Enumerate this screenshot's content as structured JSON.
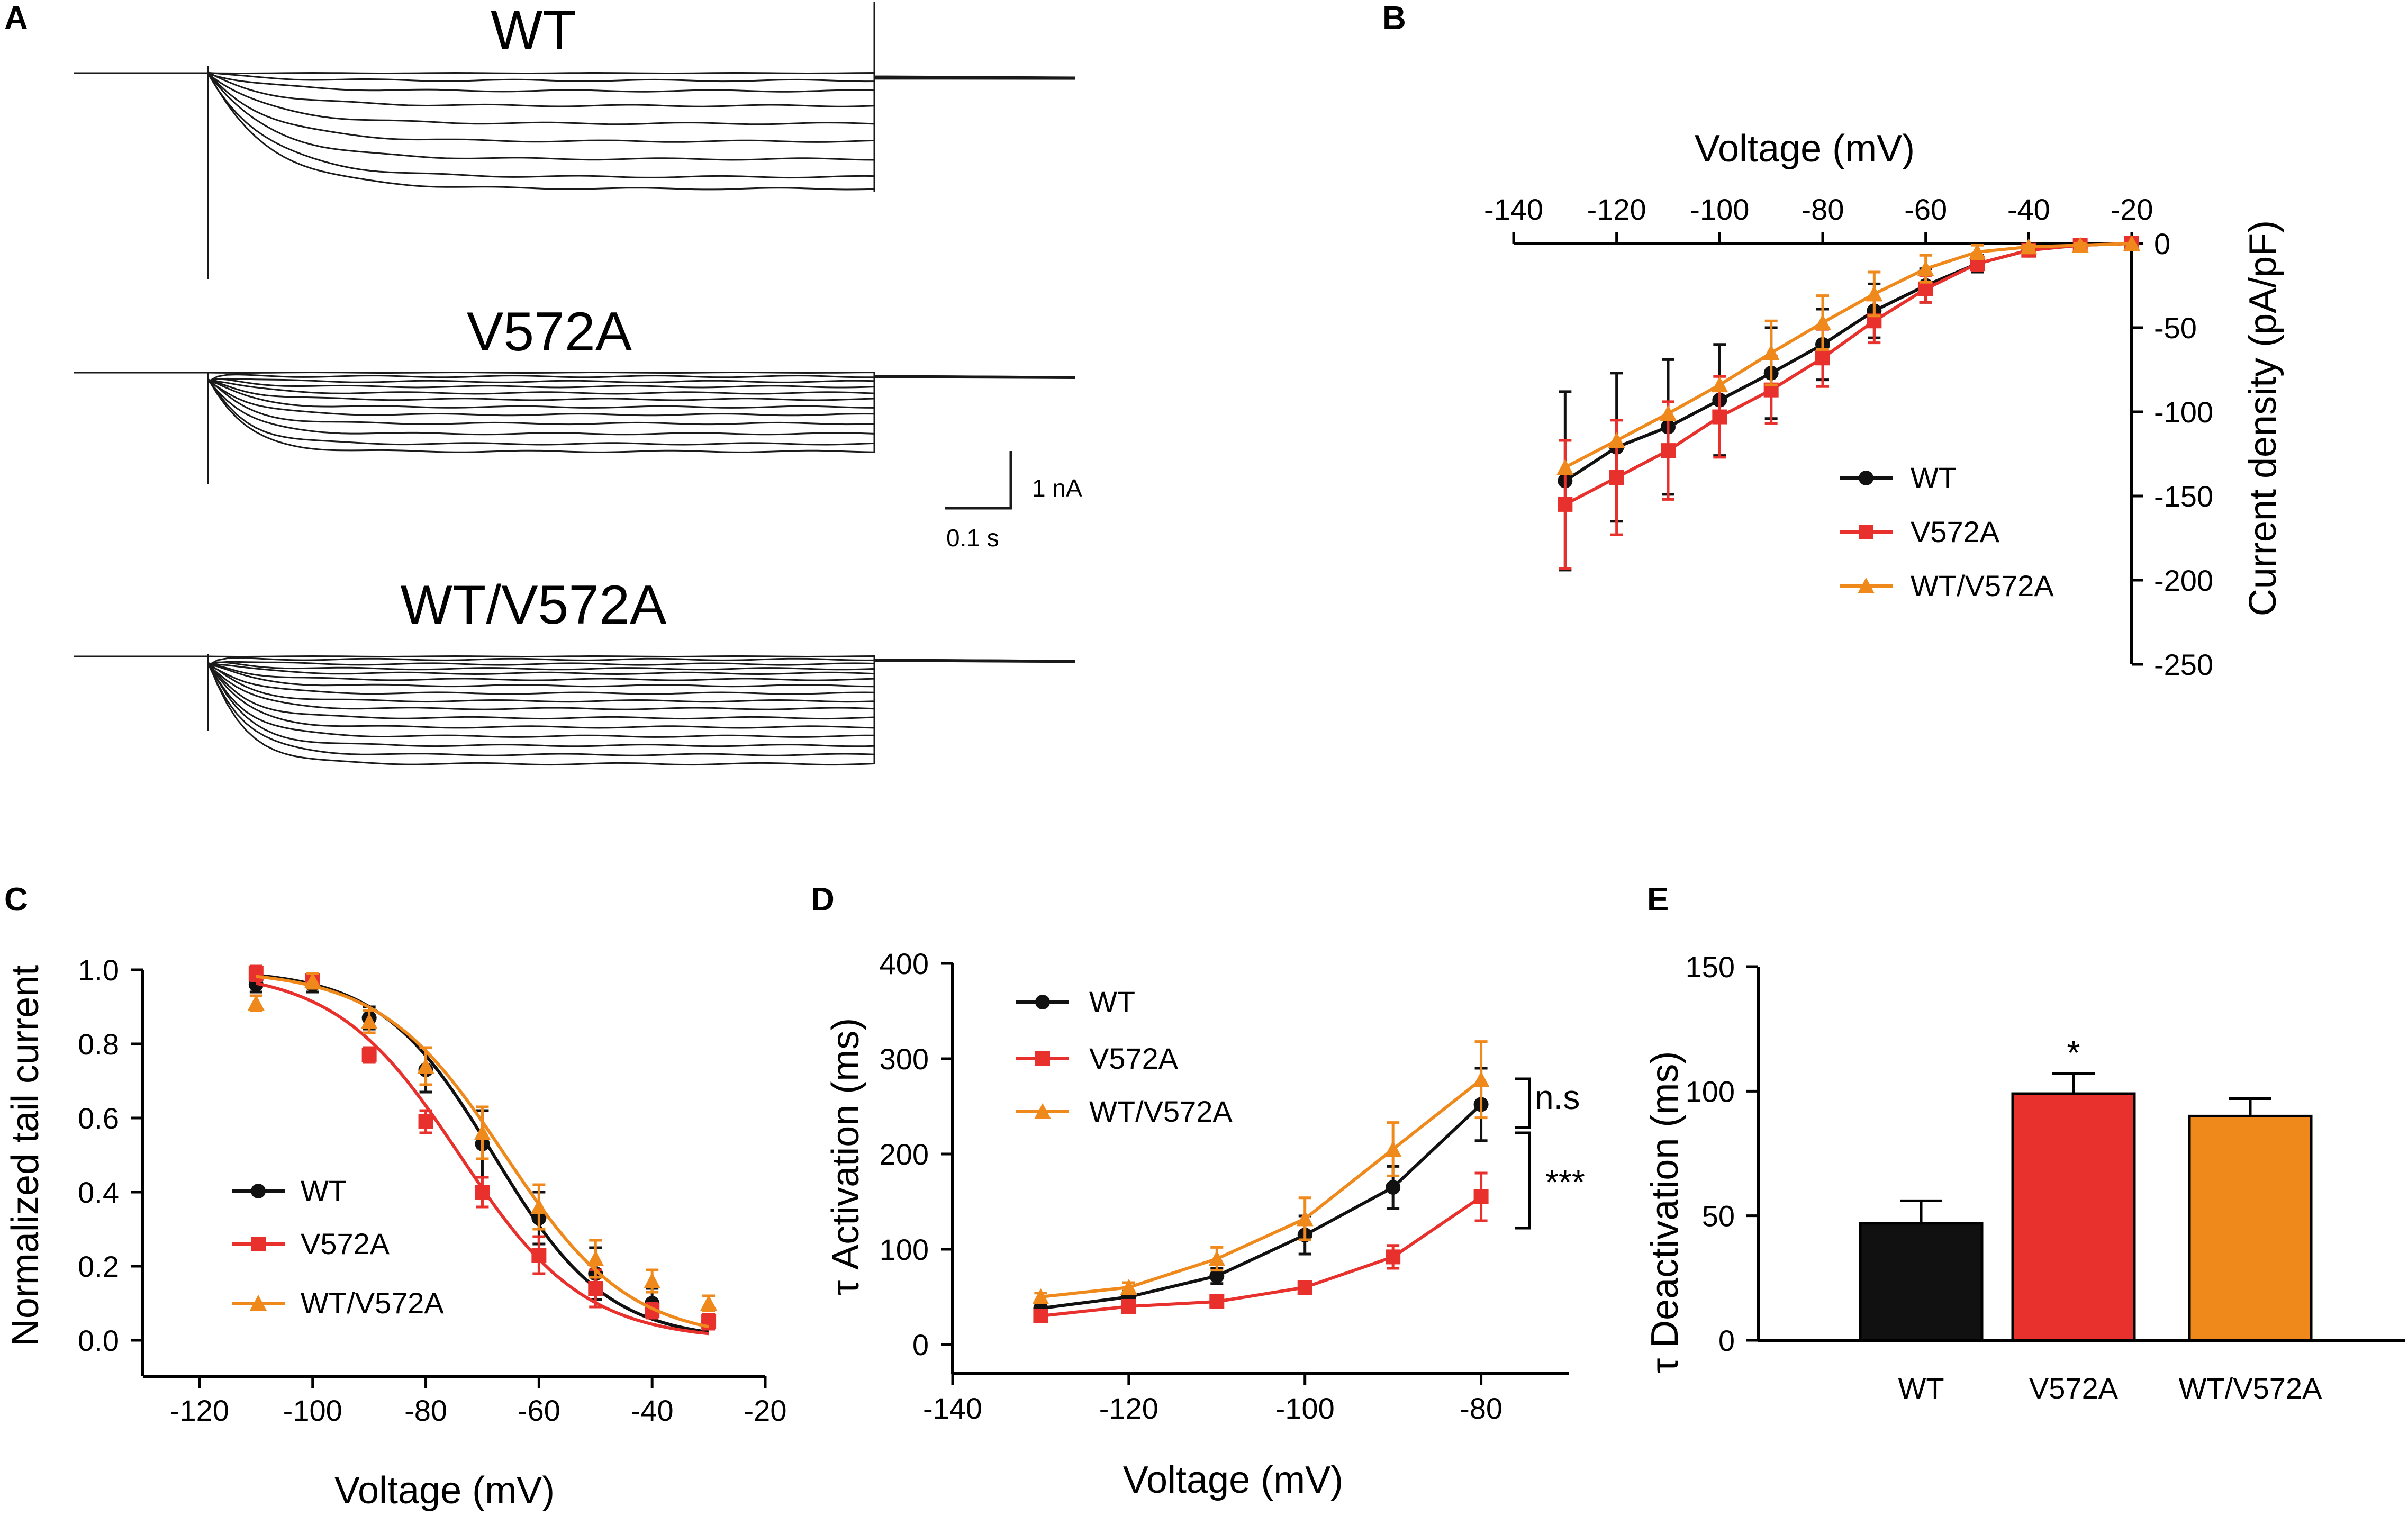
{
  "panels": {
    "A": {
      "letter": "A",
      "traces": [
        {
          "name": "WT",
          "steady_amplitudes": [
            0.0,
            0.05,
            0.12,
            0.22,
            0.34,
            0.46,
            0.58,
            0.7,
            0.78
          ]
        },
        {
          "name": "V572A",
          "steady_amplitudes": [
            0.0,
            0.03,
            0.07,
            0.11,
            0.16,
            0.21,
            0.27,
            0.33,
            0.4,
            0.48,
            0.56,
            0.62
          ]
        },
        {
          "name": "WT/V572A",
          "steady_amplitudes": [
            0.0,
            0.02,
            0.05,
            0.08,
            0.11,
            0.15,
            0.19,
            0.24,
            0.29,
            0.34,
            0.4,
            0.46,
            0.52,
            0.58,
            0.64,
            0.7
          ]
        }
      ],
      "scale_bar": {
        "current_label": "1 nA",
        "time_label": "0.1 s"
      }
    },
    "B": {
      "letter": "B"
    },
    "C": {
      "letter": "C"
    },
    "D": {
      "letter": "D"
    },
    "E": {
      "letter": "E"
    }
  },
  "colors": {
    "wt": "#111111",
    "v572a": "#e8302c",
    "wt_v572a": "#f0891c",
    "trace": "#1a1a1a"
  },
  "chart_data": [
    {
      "id": "B",
      "type": "line",
      "title": "",
      "xlabel": "Voltage (mV)",
      "ylabel": "Current density (pA/pF)",
      "xlim": [
        -140,
        -20
      ],
      "ylim": [
        -250,
        0
      ],
      "xticks": [
        -140,
        -120,
        -100,
        -80,
        -60,
        -40,
        -20
      ],
      "xtick_labels": [
        "-140",
        "-120",
        "-100",
        "-80",
        "-60",
        "-40",
        "-20"
      ],
      "yticks": [
        0,
        -50,
        -100,
        -150,
        -200,
        -250
      ],
      "ytick_labels": [
        "0",
        "-50",
        "-100",
        "-150",
        "-200",
        "-250"
      ],
      "x": [
        -130,
        -120,
        -110,
        -100,
        -90,
        -80,
        -70,
        -60,
        -50,
        -40,
        -30,
        -20
      ],
      "series": [
        {
          "name": "WT",
          "color": "#111111",
          "marker": "circle",
          "values": [
            -141,
            -121,
            -109,
            -93,
            -77,
            -60,
            -40,
            -25,
            -12,
            -4,
            -1,
            0
          ],
          "errors": [
            53,
            44,
            40,
            33,
            27,
            21,
            16,
            10,
            5,
            2,
            1,
            0
          ]
        },
        {
          "name": "V572A",
          "color": "#e8302c",
          "marker": "square",
          "values": [
            -155,
            -139,
            -123,
            -103,
            -87,
            -68,
            -46,
            -27,
            -12,
            -4,
            -1,
            0
          ],
          "errors": [
            38,
            34,
            29,
            24,
            20,
            17,
            13,
            8,
            4,
            2,
            1,
            0
          ]
        },
        {
          "name": "WT/V572A",
          "color": "#f0891c",
          "marker": "triangle",
          "values": [
            -133,
            -117,
            -101,
            -84,
            -65,
            -47,
            -30,
            -15,
            -5,
            -2,
            -1,
            0
          ],
          "errors": [
            0,
            0,
            0,
            0,
            19,
            16,
            13,
            8,
            4,
            1,
            1,
            0
          ]
        }
      ],
      "legend_position": "center-right"
    },
    {
      "id": "C",
      "type": "line",
      "title": "",
      "xlabel": "Voltage (mV)",
      "ylabel": "Normalized tail current",
      "xlim": [
        -130,
        -20
      ],
      "ylim": [
        0,
        1.0
      ],
      "xticks": [
        -120,
        -100,
        -80,
        -60,
        -40,
        -20
      ],
      "xtick_labels": [
        "-120",
        "-100",
        "-80",
        "-60",
        "-40",
        "-20"
      ],
      "yticks": [
        0.0,
        0.2,
        0.4,
        0.6,
        0.8,
        1.0
      ],
      "ytick_labels": [
        "0.0",
        "0.2",
        "0.4",
        "0.6",
        "0.8",
        "1.0"
      ],
      "x": [
        -110,
        -100,
        -90,
        -80,
        -70,
        -60,
        -50,
        -40,
        -30
      ],
      "series": [
        {
          "name": "WT",
          "color": "#111111",
          "marker": "circle",
          "values": [
            0.96,
            0.96,
            0.87,
            0.73,
            0.53,
            0.33,
            0.18,
            0.1,
            0.05
          ],
          "errors": [
            0.02,
            0.02,
            0.03,
            0.06,
            0.09,
            0.07,
            0.07,
            0.04,
            0.02
          ],
          "fit": {
            "v_half": -68,
            "k": 10
          }
        },
        {
          "name": "V572A",
          "color": "#e8302c",
          "marker": "square",
          "values": [
            0.99,
            0.97,
            0.77,
            0.59,
            0.4,
            0.23,
            0.14,
            0.08,
            0.05
          ],
          "errors": [
            0.02,
            0.02,
            0.02,
            0.03,
            0.04,
            0.05,
            0.05,
            0.02,
            0.02
          ],
          "fit": {
            "v_half": -74,
            "k": 11
          }
        },
        {
          "name": "WT/V572A",
          "color": "#f0891c",
          "marker": "triangle",
          "values": [
            0.91,
            0.97,
            0.86,
            0.74,
            0.56,
            0.36,
            0.22,
            0.16,
            0.1
          ],
          "errors": [
            0.02,
            0.02,
            0.03,
            0.05,
            0.07,
            0.06,
            0.05,
            0.03,
            0.02
          ],
          "fit": {
            "v_half": -66,
            "k": 11
          }
        }
      ],
      "legend_position": "bottom-left"
    },
    {
      "id": "D",
      "type": "line",
      "title": "",
      "xlabel": "Voltage (mV)",
      "ylabel": "τ Activation (ms)",
      "xlim": [
        -140,
        -70
      ],
      "ylim": [
        0,
        400
      ],
      "xticks": [
        -140,
        -120,
        -100,
        -80
      ],
      "xtick_labels": [
        "-140",
        "-120",
        "-100",
        "-80"
      ],
      "yticks": [
        0,
        100,
        200,
        300,
        400
      ],
      "ytick_labels": [
        "0",
        "100",
        "200",
        "300",
        "400"
      ],
      "x": [
        -130,
        -120,
        -110,
        -100,
        -90,
        -80
      ],
      "series": [
        {
          "name": "WT",
          "color": "#111111",
          "marker": "circle",
          "values": [
            38,
            50,
            72,
            115,
            165,
            252
          ],
          "errors": [
            6,
            6,
            8,
            20,
            22,
            38
          ]
        },
        {
          "name": "V572A",
          "color": "#e8302c",
          "marker": "square",
          "values": [
            30,
            40,
            45,
            60,
            92,
            155
          ],
          "errors": [
            3,
            3,
            4,
            6,
            12,
            25
          ]
        },
        {
          "name": "WT/V572A",
          "color": "#f0891c",
          "marker": "triangle",
          "values": [
            50,
            60,
            90,
            132,
            205,
            278
          ],
          "errors": [
            4,
            5,
            12,
            22,
            28,
            40
          ]
        }
      ],
      "annotations": [
        {
          "text": "n.s",
          "between": [
            "WT",
            "WT/V572A"
          ]
        },
        {
          "text": "***",
          "between": [
            "WT",
            "V572A"
          ]
        }
      ],
      "legend_position": "top-left"
    },
    {
      "id": "E",
      "type": "bar",
      "title": "",
      "xlabel": "",
      "ylabel": "τ Deactivation (ms)",
      "ylim": [
        0,
        150
      ],
      "yticks": [
        0,
        50,
        100,
        150
      ],
      "ytick_labels": [
        "0",
        "50",
        "100",
        "150"
      ],
      "categories": [
        "WT",
        "V572A",
        "WT/V572A"
      ],
      "values": [
        47,
        99,
        90
      ],
      "errors": [
        9,
        8,
        7
      ],
      "colors": [
        "#111111",
        "#e8302c",
        "#f0891c"
      ],
      "annotations": [
        {
          "category": "V572A",
          "text": "*"
        }
      ]
    }
  ]
}
